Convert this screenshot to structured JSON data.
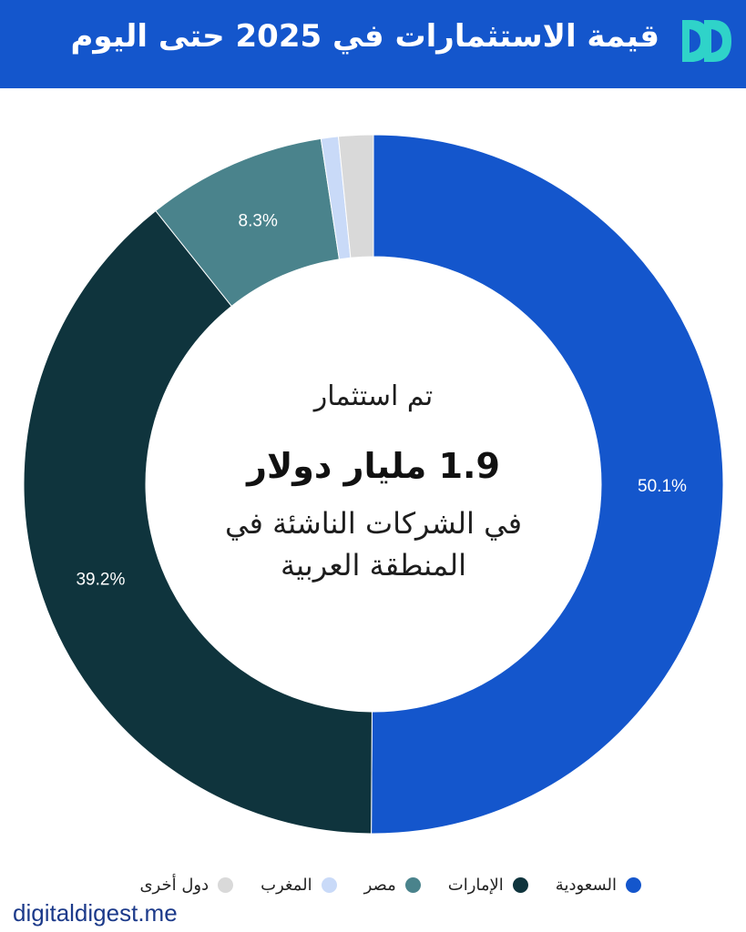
{
  "header": {
    "title": "قيمة الاستثمارات في 2025 حتى اليوم",
    "background_color": "#1456cc",
    "logo_icon": "double-d-logo-icon"
  },
  "center": {
    "line1": "تم استثمار",
    "line2": "1.9 مليار دولار",
    "line3": "في الشركات الناشئة في",
    "line4": "المنطقة العربية"
  },
  "chart_data": {
    "type": "pie",
    "variant": "donut",
    "slices": [
      {
        "label": "السعودية",
        "value": 50.1,
        "display": "50.1%",
        "color": "#1456cc"
      },
      {
        "label": "الإمارات",
        "value": 39.2,
        "display": "39.2%",
        "color": "#0f343d"
      },
      {
        "label": "مصر",
        "value": 8.3,
        "display": "8.3%",
        "color": "#4a838c"
      },
      {
        "label": "المغرب",
        "value": 0.8,
        "display": "",
        "color": "#c9daf8"
      },
      {
        "label": "دول أخرى",
        "value": 1.6,
        "display": "",
        "color": "#d9d9d9"
      }
    ],
    "legend_position": "bottom"
  },
  "watermark": "digitaldigest.me"
}
